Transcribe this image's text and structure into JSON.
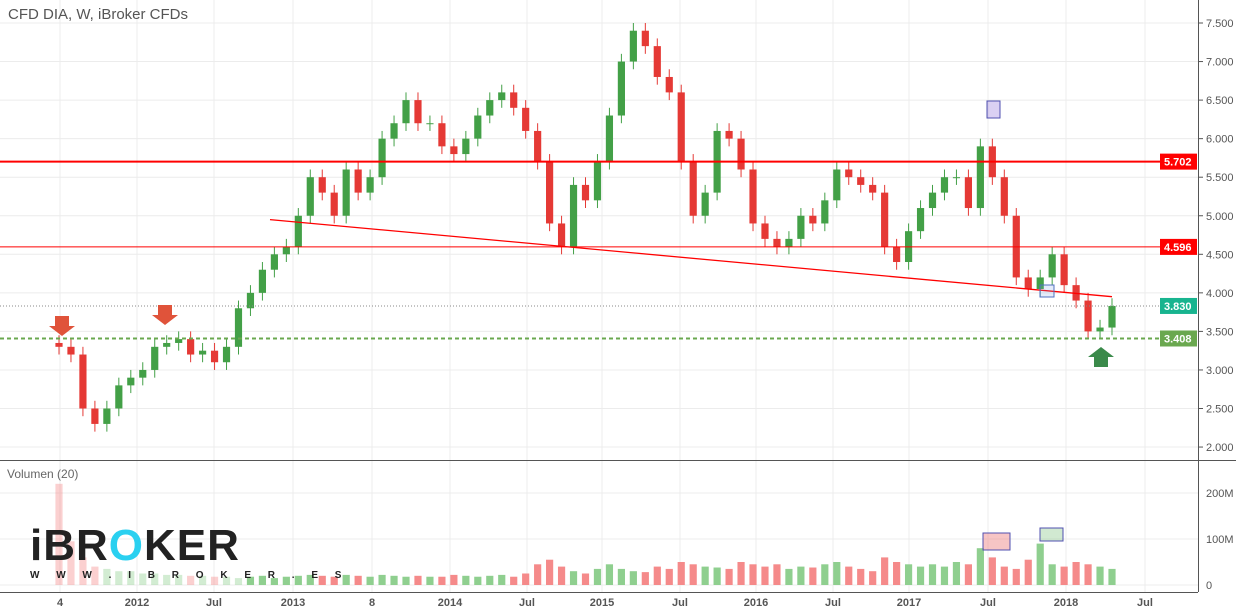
{
  "header": {
    "title": "CFD DIA, W, iBroker CFDs"
  },
  "volume_panel": {
    "label": "Volumen (20)",
    "ticks": [
      "200M",
      "100M",
      "0"
    ],
    "tick_values": [
      200,
      100,
      0
    ]
  },
  "logo": {
    "name_pre": "iBR",
    "name_o": "O",
    "name_post": "KER",
    "url": "W W W . I B R O K E R . E S"
  },
  "colors": {
    "up": "#43a047",
    "down": "#e53935",
    "vol_up": "#8fcf8f",
    "vol_down": "#f58a8a",
    "resistance": "#ff0000",
    "current": "#18b48f",
    "support": "#6aa84f"
  },
  "chart_data": {
    "type": "candlestick",
    "title": "CFD DIA, W, iBroker CFDs",
    "ylim": [
      1.85,
      7.75
    ],
    "y_ticks": [
      7.5,
      7.0,
      6.5,
      6.0,
      5.5,
      5.0,
      4.5,
      4.0,
      3.5,
      3.0,
      2.5,
      2.0
    ],
    "y_tick_labels": [
      "7.500",
      "7.000",
      "6.500",
      "6.000",
      "5.500",
      "5.000",
      "4.500",
      "4.000",
      "3.500",
      "3.000",
      "2.500",
      "2.000"
    ],
    "x_tick_labels": [
      "4",
      "2012",
      "Jul",
      "2013",
      "8",
      "2014",
      "Jul",
      "2015",
      "Jul",
      "2016",
      "Jul",
      "2017",
      "Jul",
      "2018",
      "Jul"
    ],
    "grid": true,
    "closes": [
      3.3,
      3.2,
      2.5,
      2.3,
      2.5,
      2.8,
      2.9,
      3.0,
      3.3,
      3.35,
      3.4,
      3.2,
      3.25,
      3.1,
      3.3,
      3.8,
      4.0,
      4.3,
      4.5,
      4.6,
      5.0,
      5.5,
      5.3,
      5.0,
      5.6,
      5.3,
      5.5,
      6.0,
      6.2,
      6.5,
      6.2,
      6.2,
      5.9,
      5.8,
      6.0,
      6.3,
      6.5,
      6.6,
      6.4,
      6.1,
      5.7,
      4.9,
      4.6,
      5.4,
      5.2,
      5.7,
      6.3,
      7.0,
      7.4,
      7.2,
      6.8,
      6.6,
      5.7,
      5.0,
      5.3,
      6.1,
      6.0,
      5.6,
      4.9,
      4.7,
      4.6,
      4.7,
      5.0,
      4.9,
      5.2,
      5.6,
      5.5,
      5.4,
      5.3,
      4.6,
      4.4,
      4.8,
      5.1,
      5.3,
      5.5,
      5.5,
      5.1,
      5.9,
      5.5,
      5.0,
      4.2,
      4.05,
      4.2,
      4.5,
      4.1,
      3.9,
      3.5,
      3.55,
      3.83
    ],
    "volumes_m": [
      220,
      95,
      60,
      40,
      35,
      30,
      30,
      25,
      25,
      22,
      22,
      20,
      20,
      18,
      18,
      15,
      18,
      20,
      15,
      18,
      20,
      22,
      20,
      18,
      22,
      20,
      18,
      22,
      20,
      18,
      20,
      18,
      18,
      22,
      20,
      18,
      20,
      22,
      18,
      25,
      45,
      55,
      40,
      30,
      25,
      35,
      45,
      35,
      30,
      28,
      40,
      35,
      50,
      45,
      40,
      38,
      35,
      50,
      45,
      40,
      45,
      35,
      40,
      38,
      45,
      50,
      40,
      35,
      30,
      60,
      50,
      45,
      40,
      45,
      40,
      50,
      45,
      80,
      60,
      40,
      35,
      55,
      90,
      45,
      40,
      50,
      45,
      40,
      35
    ],
    "horizontal_levels": [
      {
        "value": 5.702,
        "label": "5.702",
        "style": "resistance"
      },
      {
        "value": 4.596,
        "label": "4.596",
        "style": "resistance"
      },
      {
        "value": 3.83,
        "label": "3.830",
        "style": "current"
      },
      {
        "value": 3.408,
        "label": "3.408",
        "style": "support"
      }
    ],
    "trendline": {
      "from": 4.95,
      "to": 3.95
    },
    "annotations": [
      {
        "type": "arrow-down",
        "color": "#e0533a"
      },
      {
        "type": "arrow-down",
        "color": "#e0533a"
      },
      {
        "type": "arrow-up",
        "color": "#3a8a4a"
      }
    ]
  }
}
